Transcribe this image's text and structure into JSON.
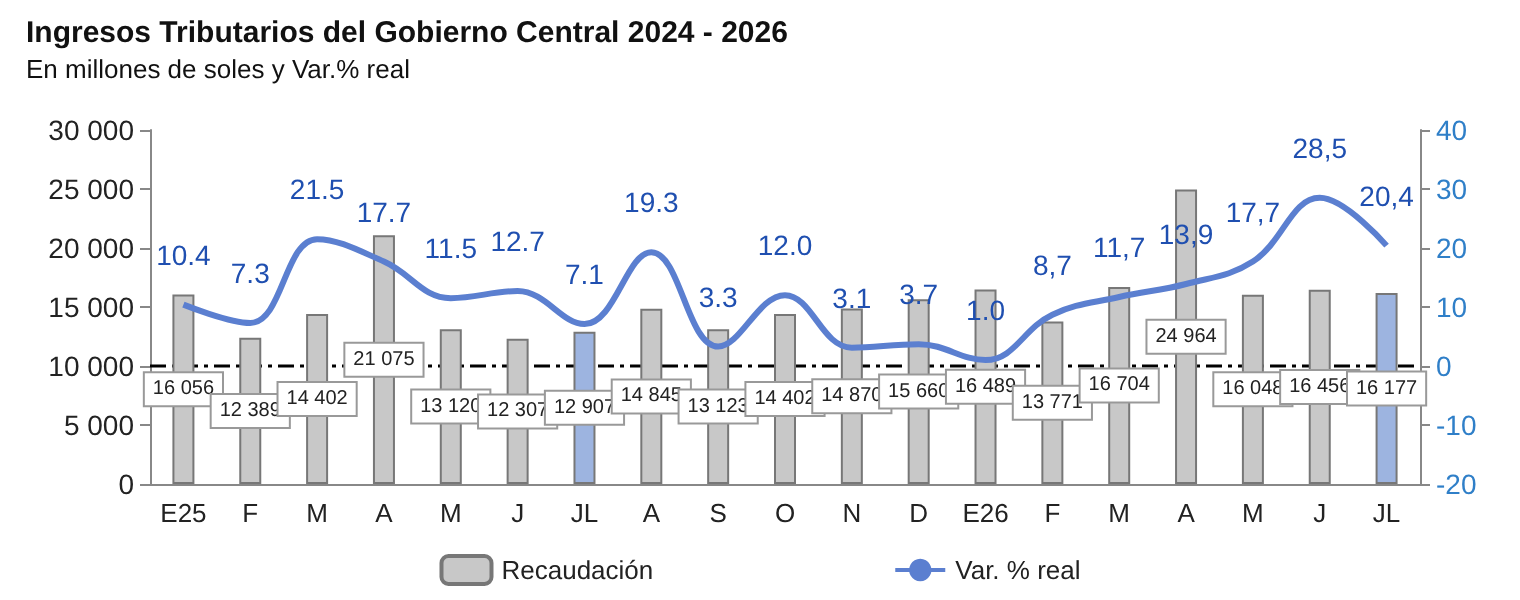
{
  "chart_data": {
    "type": "bar",
    "title": "Ingresos Tributarios del Gobierno Central 2024 - 2026",
    "subtitle": "En millones de soles y Var.% real",
    "categories": [
      "E25",
      "F",
      "M",
      "A",
      "M",
      "J",
      "JL",
      "A",
      "S",
      "O",
      "N",
      "D",
      "E26",
      "F",
      "M",
      "A",
      "M",
      "J",
      "JL"
    ],
    "series": [
      {
        "name": "Recaudación",
        "color": "#c8c8c8",
        "colors": [
          "#c8c8c8",
          "#c8c8c8",
          "#c8c8c8",
          "#c8c8c8",
          "#c8c8c8",
          "#c8c8c8",
          "#9db4e0",
          "#c8c8c8",
          "#c8c8c8",
          "#c8c8c8",
          "#c8c8c8",
          "#c8c8c8",
          "#c8c8c8",
          "#c8c8c8",
          "#c8c8c8",
          "#c8c8c8",
          "#c8c8c8",
          "#c8c8c8",
          "#9db4e0"
        ],
        "values": [
          16056,
          12389,
          14402,
          21075,
          13120,
          12307,
          12907,
          14845,
          13123,
          14402,
          14870,
          15660,
          16489,
          13771,
          16704,
          24964,
          16048,
          16456,
          16177
        ],
        "value_labels": [
          "16 056",
          "12 389",
          "14 402",
          "21 075",
          "13 120",
          "12 307",
          "12 907",
          "14 845",
          "13 123",
          "14 402",
          "14 870",
          "15 660",
          "16 489",
          "13 771",
          "16 704",
          "24 964",
          "16 048",
          "16 456",
          "16 177"
        ]
      },
      {
        "name": "Var. % real",
        "type": "line",
        "axis": "y2",
        "color": "#5b7fd0",
        "values": [
          10.4,
          7.3,
          21.5,
          17.7,
          11.5,
          12.7,
          7.1,
          19.3,
          3.3,
          12.0,
          3.1,
          3.7,
          1.0,
          8.7,
          11.7,
          13.9,
          17.7,
          28.5,
          20.4
        ],
        "value_labels": [
          "10.4",
          "7.3",
          "21.5",
          "17.7",
          "11.5",
          "12.7",
          "7.1",
          "19.3",
          "3.3",
          "12.0",
          "3.1",
          "3.7",
          "1.0",
          "8,7",
          "11,7",
          "13,9",
          "17,7",
          "28,5",
          "20,4"
        ]
      }
    ],
    "ylim": [
      0,
      30000
    ],
    "yticks": [
      0,
      {
        "value": 5000,
        "label": "5 000"
      },
      {
        "value": 10000,
        "label": "10 000"
      },
      {
        "value": 15000,
        "label": "15 000"
      },
      {
        "value": 20000,
        "label": "20 000"
      },
      {
        "value": 25000,
        "label": "25 000"
      },
      {
        "value": 30000,
        "label": "30 000"
      }
    ],
    "y2lim": [
      -20,
      40
    ],
    "y2ticks": [
      -20,
      -10,
      0,
      10,
      20,
      30,
      40
    ],
    "ref_lines": [
      {
        "axis": "y2",
        "value": 0,
        "color": "#000000",
        "line_style": "dashed"
      }
    ],
    "grid": false,
    "legend": "bottom",
    "marker": "none"
  }
}
